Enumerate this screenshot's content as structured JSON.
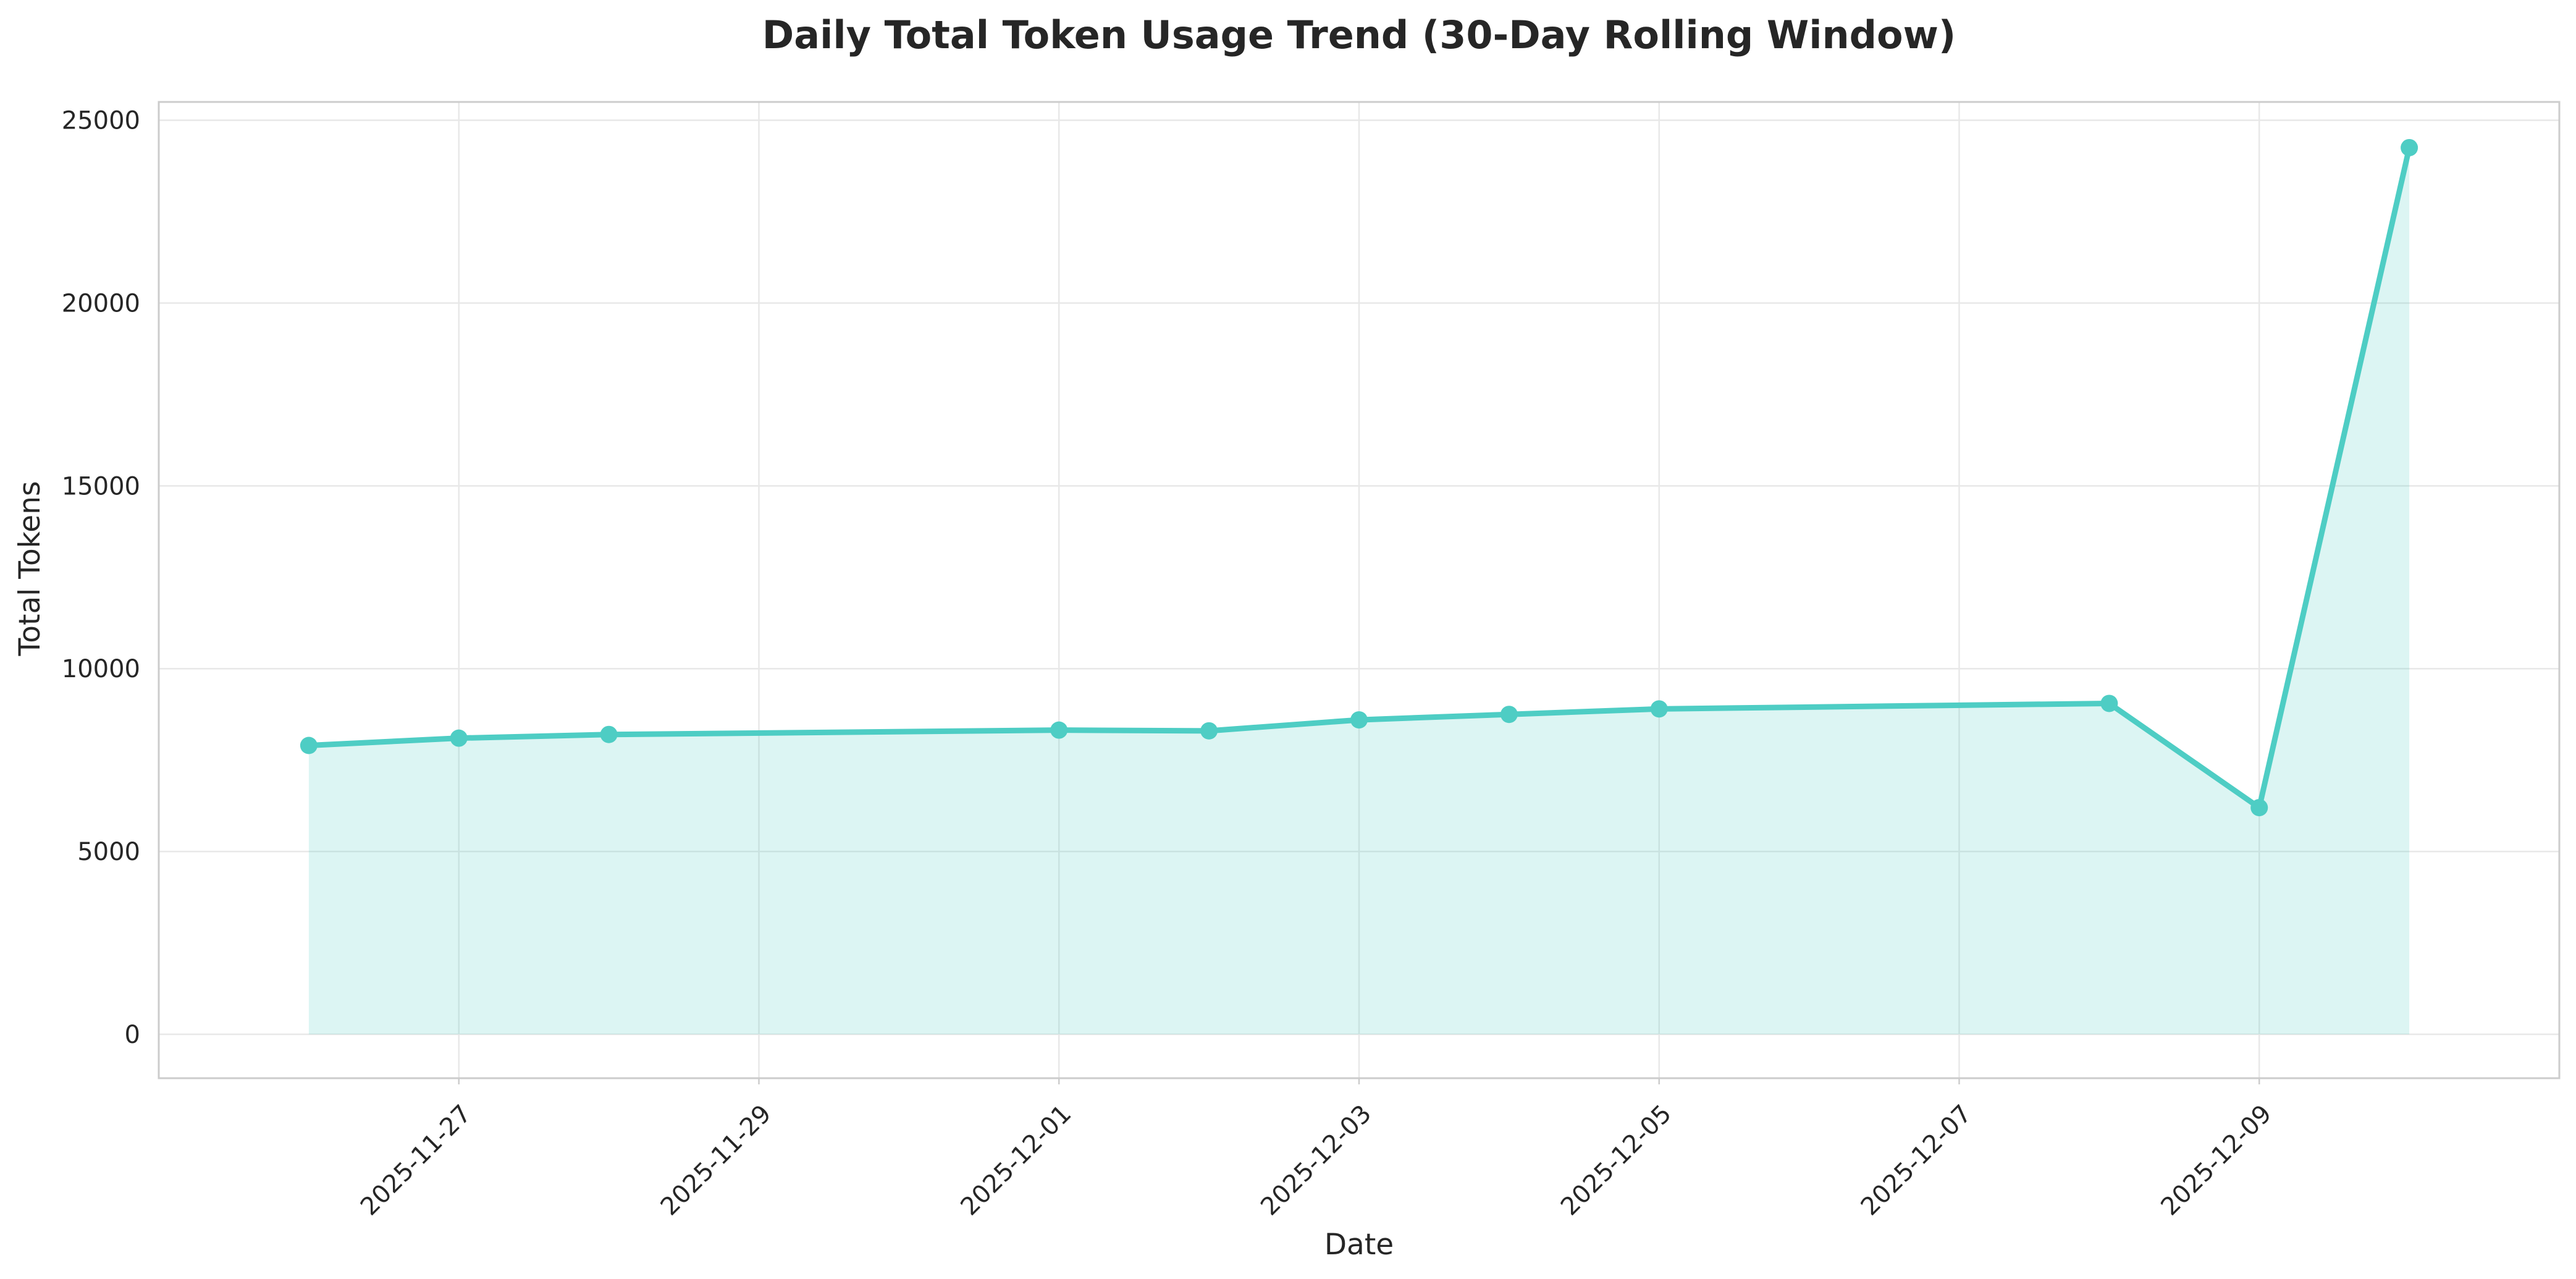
{
  "chart_data": {
    "type": "line",
    "title": "Daily Total Token Usage Trend (30-Day Rolling Window)",
    "xlabel": "Date",
    "ylabel": "Total Tokens",
    "x": [
      "2025-11-26",
      "2025-11-27",
      "2025-11-28",
      "2025-12-01",
      "2025-12-02",
      "2025-12-03",
      "2025-12-04",
      "2025-12-05",
      "2025-12-08",
      "2025-12-09",
      "2025-12-10"
    ],
    "series": [
      {
        "values": [
          7900,
          8100,
          8200,
          8320,
          8300,
          8600,
          8750,
          8900,
          9050,
          6200,
          24250
        ]
      }
    ],
    "ylim": [
      -1200,
      25500
    ],
    "xlim": [
      "2025-11-25",
      "2025-12-11"
    ],
    "x_ticks": [
      "2025-11-27",
      "2025-11-29",
      "2025-12-01",
      "2025-12-03",
      "2025-12-05",
      "2025-12-07",
      "2025-12-09"
    ],
    "y_ticks": [
      0,
      5000,
      10000,
      15000,
      20000,
      25000
    ],
    "grid": true,
    "fill_under_line": true,
    "line_color": "#4ecdc4"
  }
}
